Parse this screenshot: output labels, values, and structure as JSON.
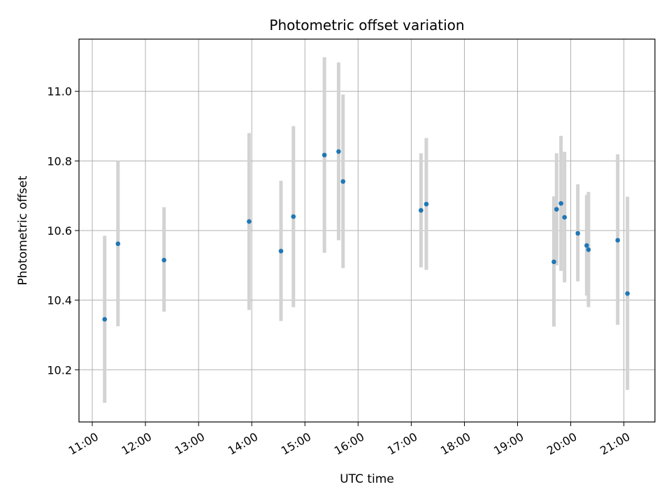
{
  "chart_data": {
    "type": "scatter",
    "title": "Photometric offset variation",
    "xlabel": "UTC time",
    "ylabel": "Photometric offset",
    "xlim": [
      "10:45",
      "21:35"
    ],
    "ylim": [
      10.05,
      11.15
    ],
    "grid": true,
    "x_ticks": [
      "11:00",
      "12:00",
      "13:00",
      "14:00",
      "15:00",
      "16:00",
      "17:00",
      "18:00",
      "19:00",
      "20:00",
      "21:00"
    ],
    "y_ticks": [
      "10.2",
      "10.4",
      "10.6",
      "10.8",
      "11.0"
    ],
    "marker_color": "#1f77b4",
    "errorbar_color": "#d3d3d3",
    "points": [
      {
        "x": "11:14",
        "y": 10.345,
        "lo": 10.105,
        "hi": 10.585
      },
      {
        "x": "11:29",
        "y": 10.562,
        "lo": 10.325,
        "hi": 10.8
      },
      {
        "x": "12:21",
        "y": 10.515,
        "lo": 10.367,
        "hi": 10.667
      },
      {
        "x": "13:57",
        "y": 10.626,
        "lo": 10.372,
        "hi": 10.88
      },
      {
        "x": "14:33",
        "y": 10.541,
        "lo": 10.34,
        "hi": 10.743
      },
      {
        "x": "14:47",
        "y": 10.64,
        "lo": 10.38,
        "hi": 10.9
      },
      {
        "x": "15:22",
        "y": 10.817,
        "lo": 10.536,
        "hi": 11.098
      },
      {
        "x": "15:38",
        "y": 10.827,
        "lo": 10.572,
        "hi": 11.083
      },
      {
        "x": "15:43",
        "y": 10.741,
        "lo": 10.492,
        "hi": 10.991
      },
      {
        "x": "17:11",
        "y": 10.658,
        "lo": 10.494,
        "hi": 10.822
      },
      {
        "x": "17:17",
        "y": 10.676,
        "lo": 10.487,
        "hi": 10.866
      },
      {
        "x": "19:41",
        "y": 10.51,
        "lo": 10.324,
        "hi": 10.698
      },
      {
        "x": "19:44",
        "y": 10.661,
        "lo": 10.5,
        "hi": 10.822
      },
      {
        "x": "19:49",
        "y": 10.678,
        "lo": 10.484,
        "hi": 10.872
      },
      {
        "x": "19:53",
        "y": 10.638,
        "lo": 10.451,
        "hi": 10.826
      },
      {
        "x": "20:08",
        "y": 10.592,
        "lo": 10.454,
        "hi": 10.733
      },
      {
        "x": "20:18",
        "y": 10.557,
        "lo": 10.413,
        "hi": 10.702
      },
      {
        "x": "20:20",
        "y": 10.545,
        "lo": 10.38,
        "hi": 10.711
      },
      {
        "x": "20:53",
        "y": 10.572,
        "lo": 10.329,
        "hi": 10.819
      },
      {
        "x": "21:04",
        "y": 10.419,
        "lo": 10.142,
        "hi": 10.697
      }
    ]
  }
}
